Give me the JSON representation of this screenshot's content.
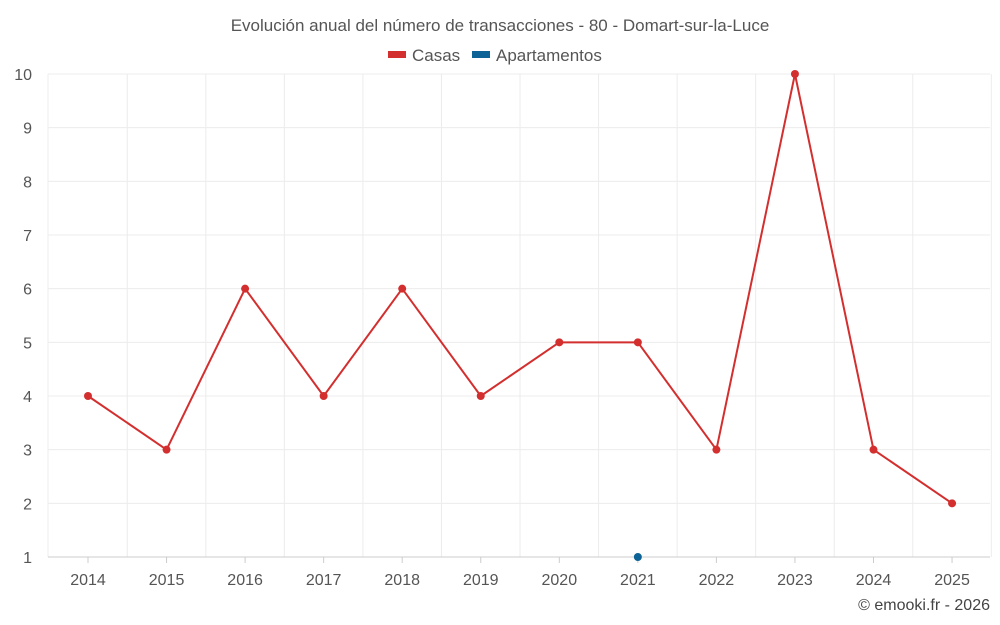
{
  "chart_data": {
    "type": "line",
    "title": "Evolución anual del número de transacciones - 80 - Domart-sur-la-Luce",
    "categories": [
      "2014",
      "2015",
      "2016",
      "2017",
      "2018",
      "2019",
      "2020",
      "2021",
      "2022",
      "2023",
      "2024",
      "2025"
    ],
    "series": [
      {
        "name": "Casas",
        "color": "#d32f2f",
        "values": [
          4,
          3,
          6,
          4,
          6,
          4,
          5,
          5,
          3,
          10,
          3,
          2
        ]
      },
      {
        "name": "Apartamentos",
        "color": "#0d6396",
        "values": [
          null,
          null,
          null,
          null,
          null,
          null,
          null,
          1,
          null,
          null,
          null,
          null
        ]
      }
    ],
    "ylim": [
      1,
      10
    ],
    "yticks": [
      "1",
      "2",
      "3",
      "4",
      "5",
      "6",
      "7",
      "8",
      "9",
      "10"
    ],
    "xlabel": "",
    "ylabel": "",
    "legend": "top-center",
    "grid": true
  },
  "credit": "© emooki.fr - 2026"
}
